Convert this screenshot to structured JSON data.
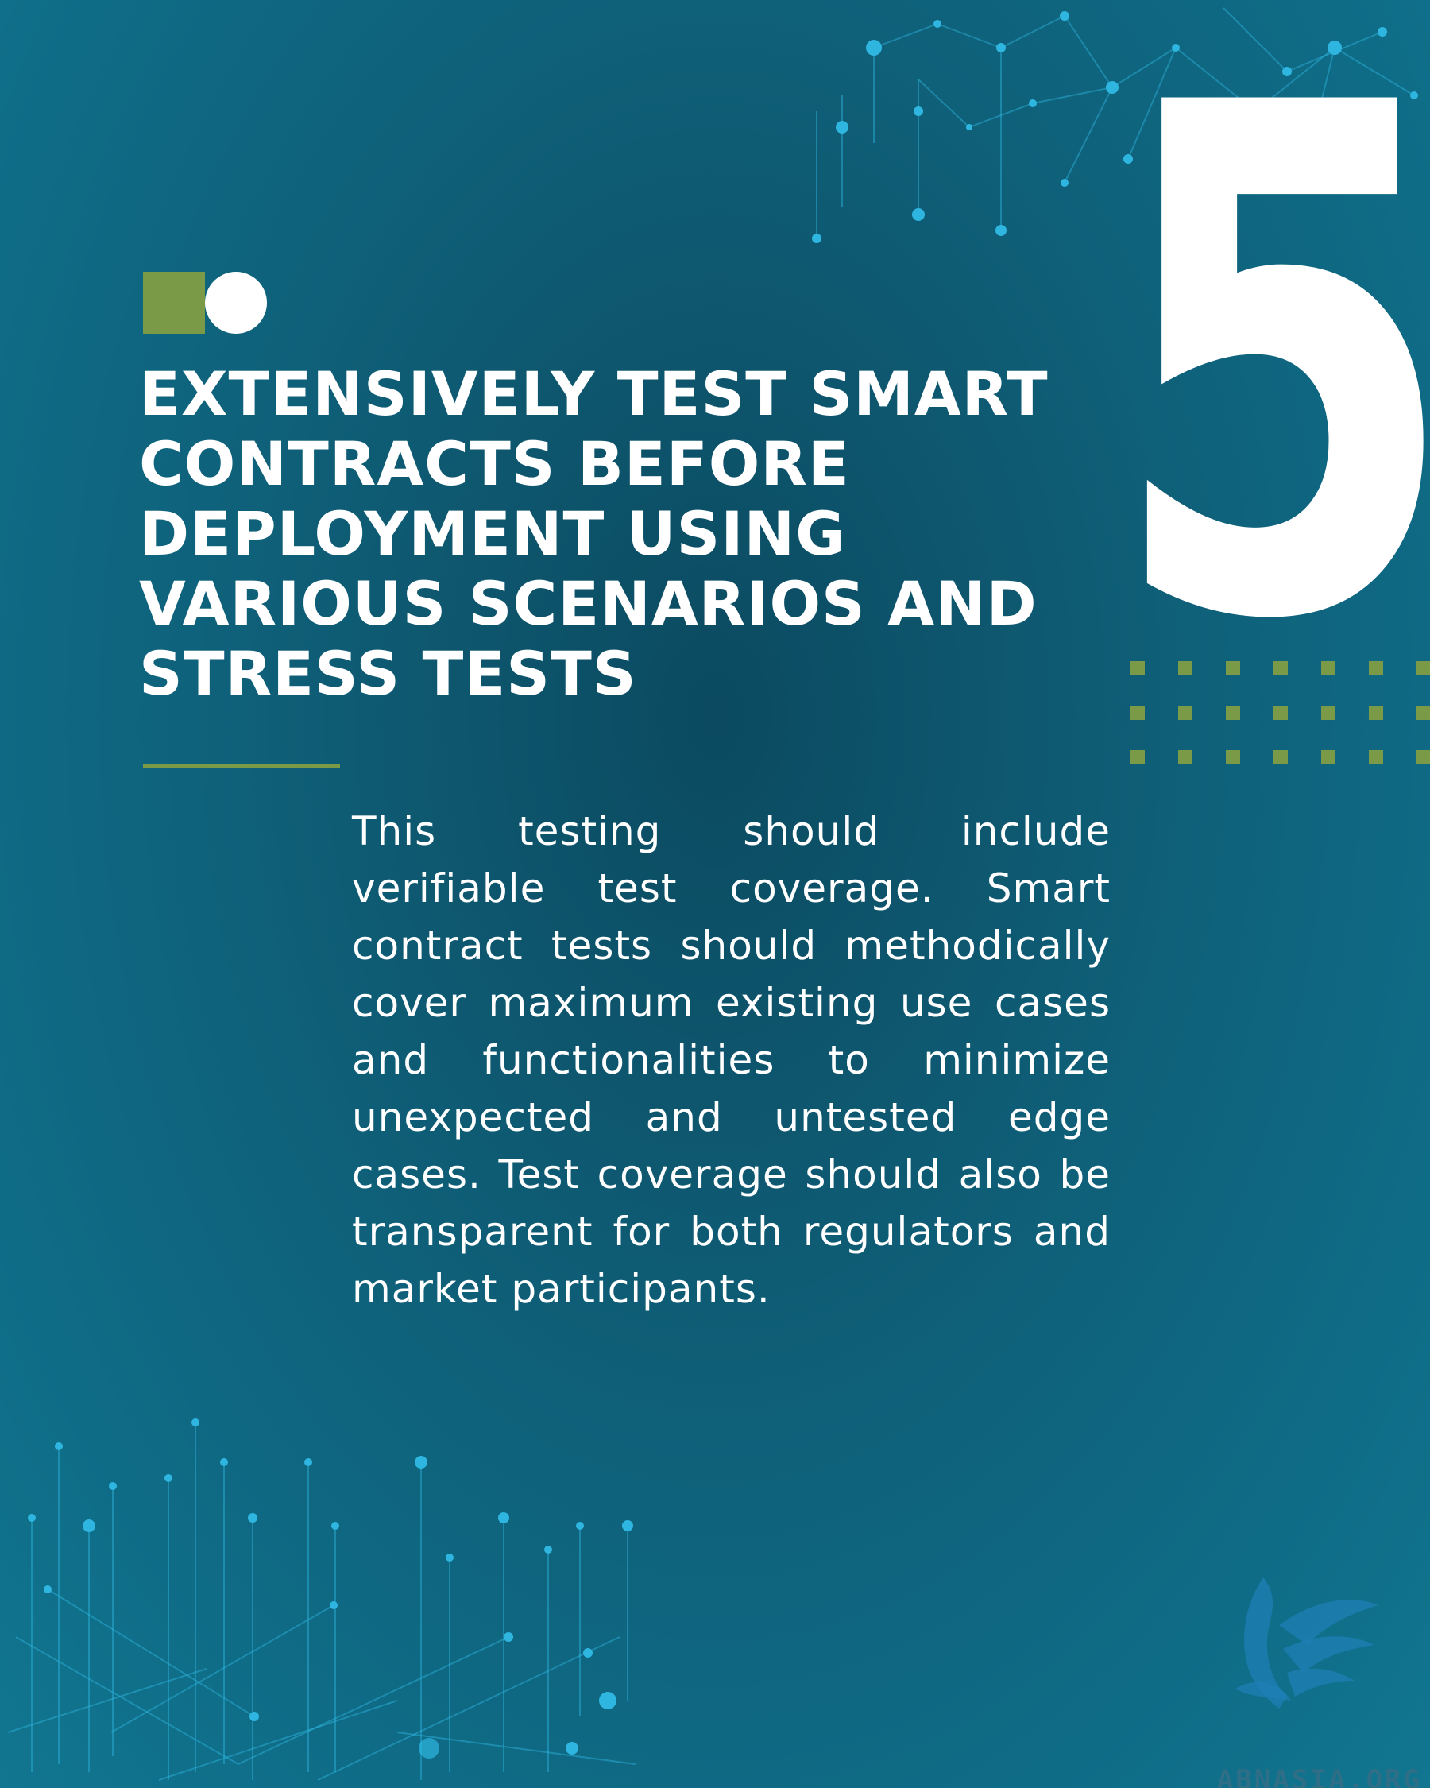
{
  "colors": {
    "background": "#0f6d88",
    "accent_green": "#7a9a48",
    "text": "#ffffff",
    "network_lines": "#2fb6e0"
  },
  "heading": {
    "title": "EXTENSIVELY TEST SMART CONTRACTS BEFORE DEPLOYMENT USING VARIOUS SCENARIOS AND STRESS TESTS",
    "number": "5"
  },
  "body": {
    "paragraph": "This testing should include verifiable test coverage. Smart contract tests should methodically cover maximum existing use cases and functionalities to minimize unexpected and untested edge cases. Test coverage should also be transparent for both regulators and market participants."
  },
  "branding": {
    "logo_text": "ABNASIA.ORG",
    "logo_icon": "eagle-icon"
  },
  "decorations": {
    "top_right": "network-icon",
    "bottom_left": "network-icon",
    "marker": [
      "square-icon",
      "circle-icon"
    ],
    "dot_grid": "square-dot-grid"
  }
}
